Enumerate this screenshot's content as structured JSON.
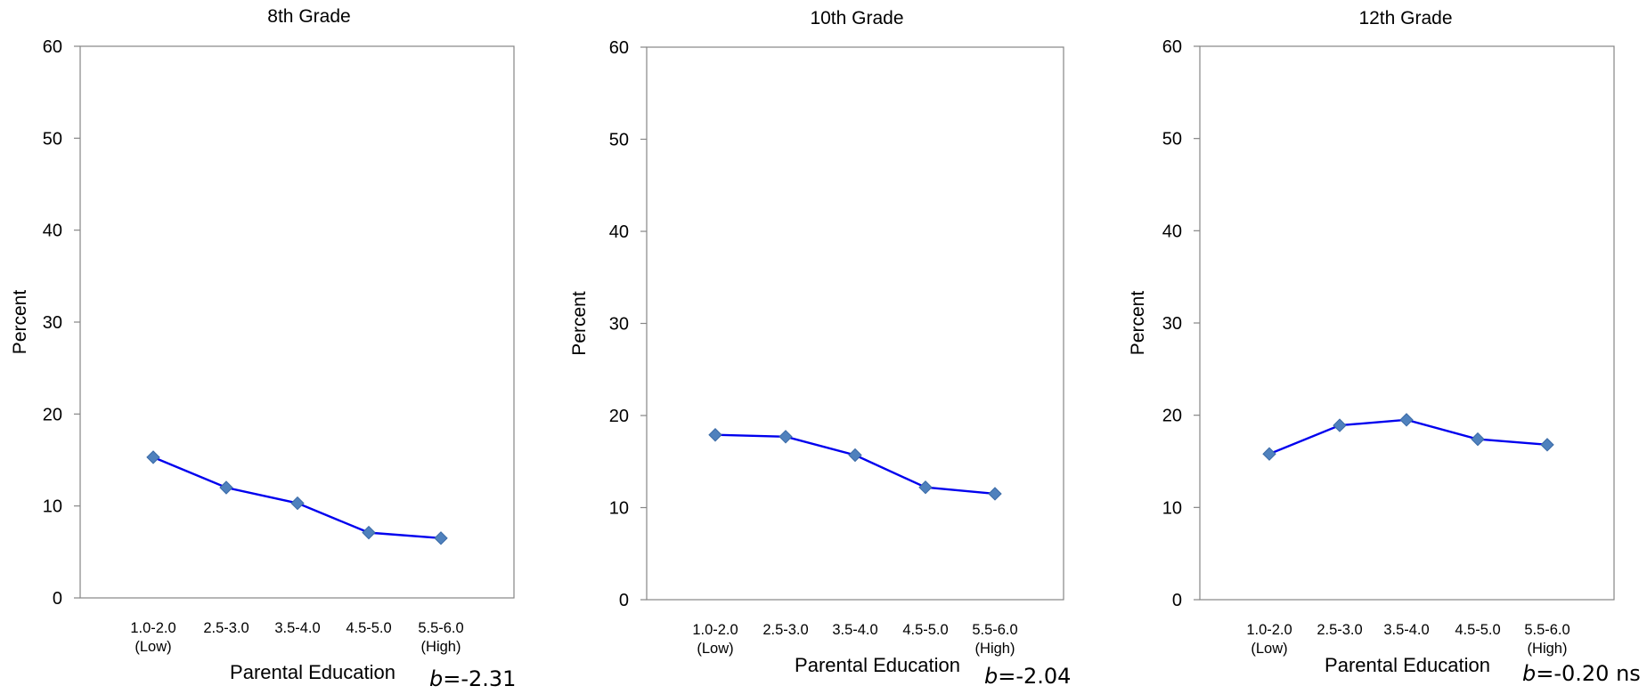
{
  "chart_data": [
    {
      "type": "line",
      "title": "8th Grade",
      "xlabel": "Parental Education",
      "ylabel": "Percent",
      "ylim": [
        0,
        60
      ],
      "yticks": [
        0,
        10,
        20,
        30,
        40,
        50,
        60
      ],
      "categories": [
        [
          "1.0-2.0",
          "(Low)"
        ],
        [
          "2.5-3.0"
        ],
        [
          "3.5-4.0"
        ],
        [
          "4.5-5.0"
        ],
        [
          "5.5-6.0",
          "(High)"
        ]
      ],
      "values": [
        15.3,
        12.0,
        10.3,
        7.1,
        6.5
      ],
      "stat": {
        "italic": "b",
        "rest": "=-2.31"
      },
      "line_color": "#0000ee",
      "marker_color": "#4f81bd",
      "grid": false
    },
    {
      "type": "line",
      "title": "10th Grade",
      "xlabel": "Parental Education",
      "ylabel": "Percent",
      "ylim": [
        0,
        60
      ],
      "yticks": [
        0,
        10,
        20,
        30,
        40,
        50,
        60
      ],
      "categories": [
        [
          "1.0-2.0",
          "(Low)"
        ],
        [
          "2.5-3.0"
        ],
        [
          "3.5-4.0"
        ],
        [
          "4.5-5.0"
        ],
        [
          "5.5-6.0",
          "(High)"
        ]
      ],
      "values": [
        17.9,
        17.7,
        15.7,
        12.2,
        11.5
      ],
      "stat": {
        "italic": "b",
        "rest": "=-2.04"
      },
      "line_color": "#0000ee",
      "marker_color": "#4f81bd",
      "grid": false
    },
    {
      "type": "line",
      "title": "12th Grade",
      "xlabel": "Parental Education",
      "ylabel": "Percent",
      "ylim": [
        0,
        60
      ],
      "yticks": [
        0,
        10,
        20,
        30,
        40,
        50,
        60
      ],
      "categories": [
        [
          "1.0-2.0",
          "(Low)"
        ],
        [
          "2.5-3.0"
        ],
        [
          "3.5-4.0"
        ],
        [
          "4.5-5.0"
        ],
        [
          "5.5-6.0",
          "(High)"
        ]
      ],
      "values": [
        15.8,
        18.9,
        19.5,
        17.4,
        16.8
      ],
      "stat": {
        "italic": "b",
        "rest": "=-0.20 ns"
      },
      "line_color": "#0000ee",
      "marker_color": "#4f81bd",
      "grid": false
    }
  ]
}
